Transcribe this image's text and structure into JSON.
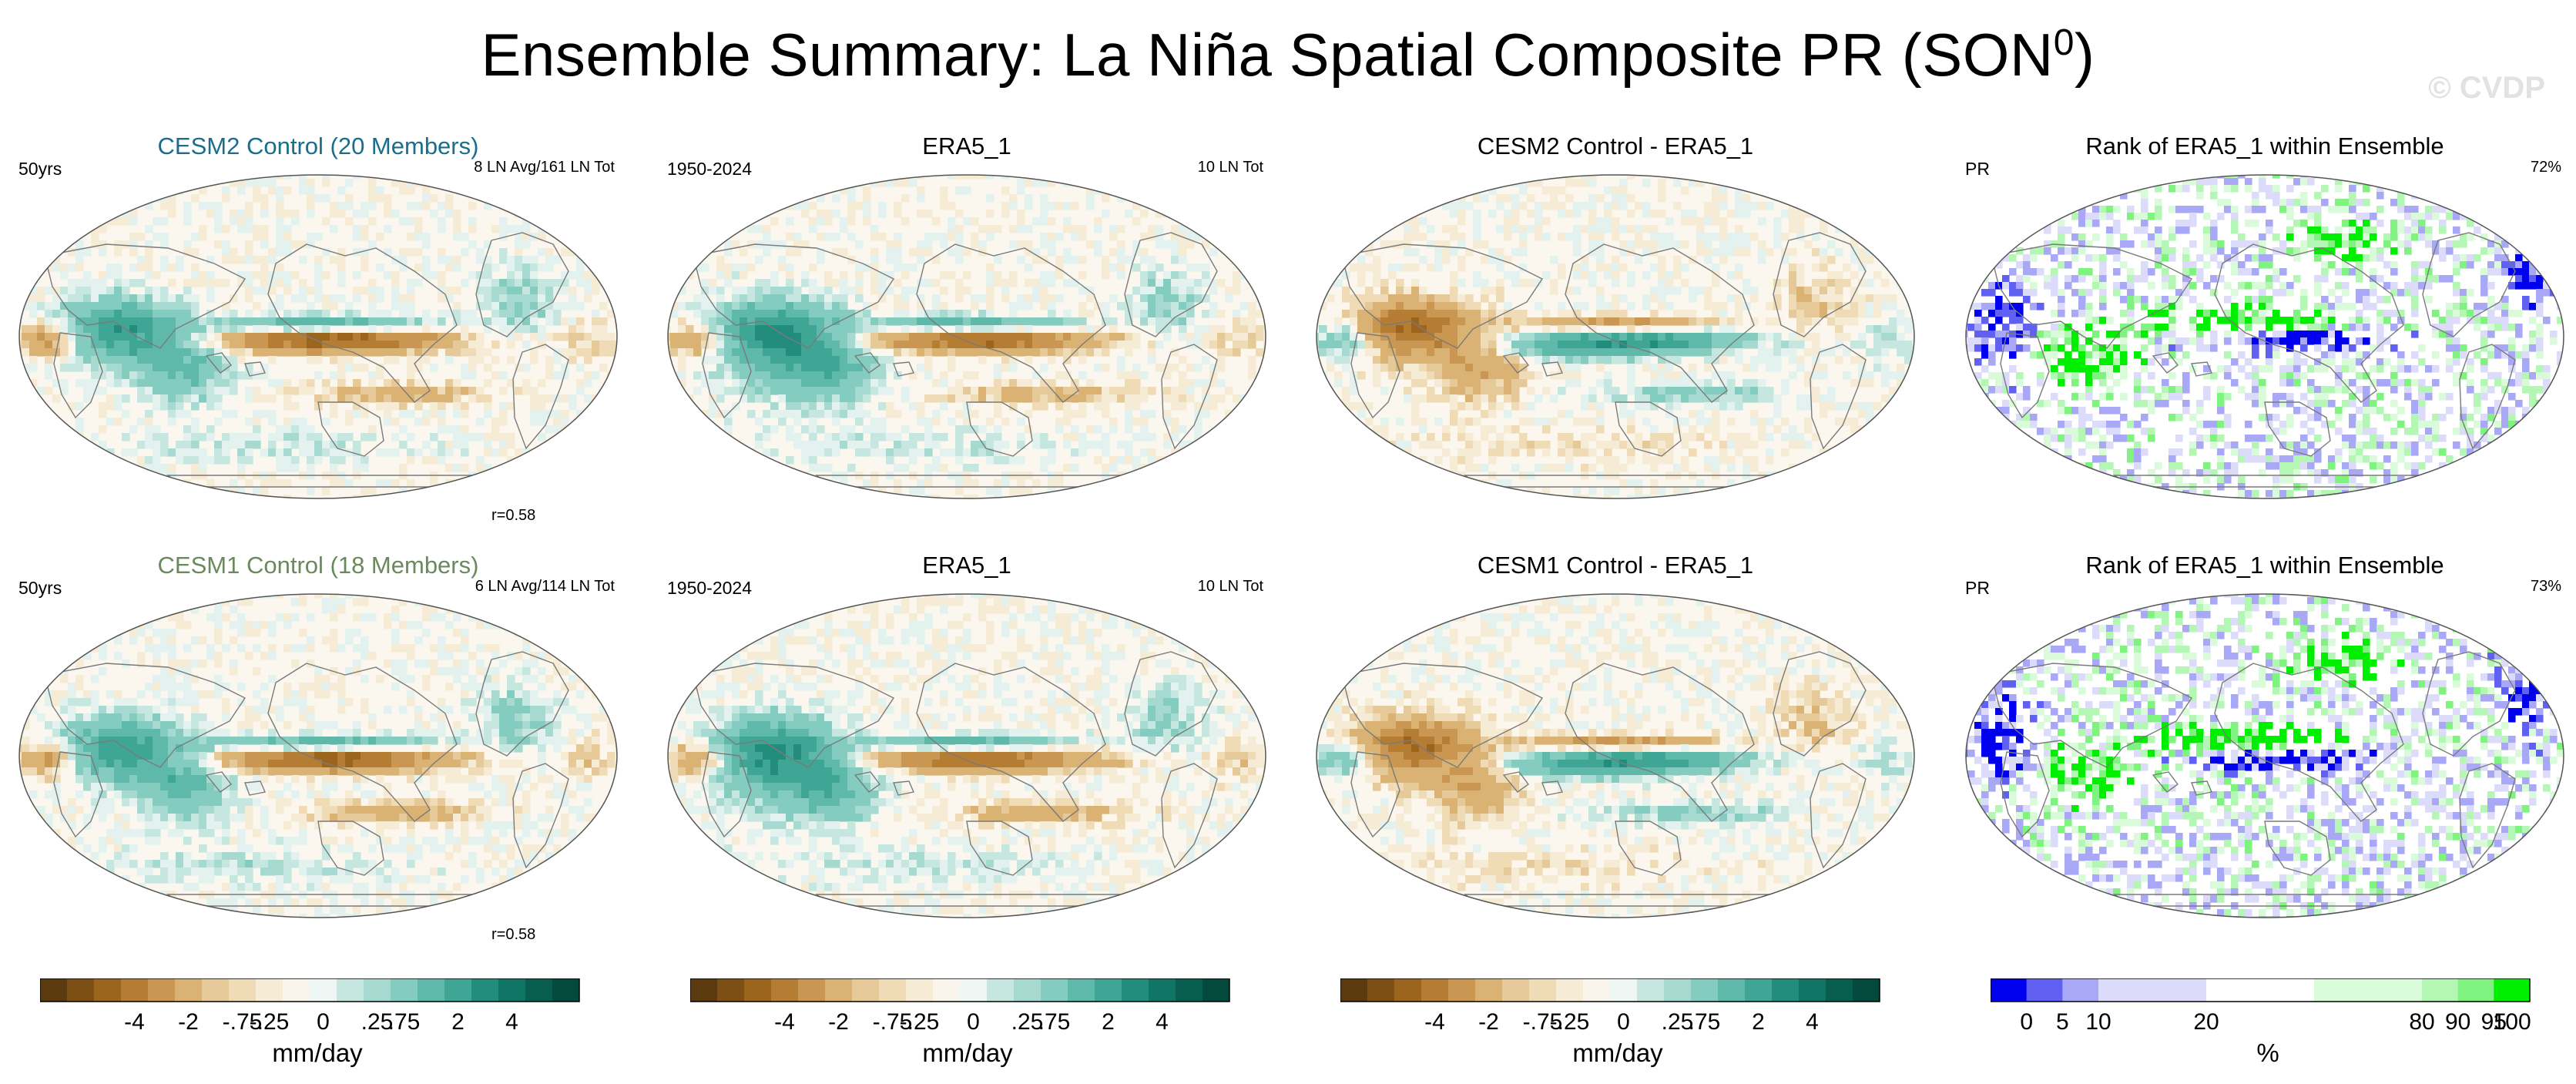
{
  "title": {
    "main": "Ensemble Summary: La Niña Spatial Composite PR (SON",
    "sup": "0",
    "end": ")"
  },
  "watermark": "© CVDP",
  "colors": {
    "cesm2": "#1b6e8a",
    "cesm1": "#6a8a5e",
    "ocean": "#f3ecdc",
    "coast": "#7a7a7a",
    "brown": [
      "#5c3a0f",
      "#7c4f14",
      "#9b651d",
      "#b47d33",
      "#c99751",
      "#d9b274",
      "#e6c998",
      "#efdcb6",
      "#f6ecd6"
    ],
    "teal": [
      "#e3f2ee",
      "#c6e7df",
      "#a6dad0",
      "#84ccbf",
      "#5fb9aa",
      "#3fa595",
      "#238d7d",
      "#107564",
      "#075e4f",
      "#034a3d"
    ],
    "rank": [
      "#0000ee",
      "#6060f2",
      "#a8a8f6",
      "#dcdcfa",
      "#ffffff",
      "#d9fbd9",
      "#b4f7b4",
      "#7ff27f",
      "#00ee00"
    ]
  },
  "panels": [
    {
      "row": 0,
      "col": 0,
      "title": "CESM2 Control (20 Members)",
      "title_color": "cesm2",
      "left_label": "50yrs",
      "right_label": "8 LN Avg/161 LN Tot",
      "bottom_label": "r=0.58",
      "kind": "composite",
      "seed": 11
    },
    {
      "row": 0,
      "col": 1,
      "title": "ERA5_1",
      "title_color": "",
      "left_label": "1950-2024",
      "right_label": "10 LN Tot",
      "bottom_label": "",
      "kind": "obs",
      "seed": 23
    },
    {
      "row": 0,
      "col": 2,
      "title": "CESM2 Control - ERA5_1",
      "title_color": "",
      "left_label": "",
      "right_label": "",
      "bottom_label": "",
      "kind": "diff",
      "seed": 37
    },
    {
      "row": 0,
      "col": 3,
      "title": "Rank of ERA5_1 within Ensemble",
      "title_color": "",
      "left_label": "PR",
      "right_label": "72%",
      "bottom_label": "",
      "kind": "rank",
      "seed": 41
    },
    {
      "row": 1,
      "col": 0,
      "title": "CESM1 Control (18 Members)",
      "title_color": "cesm1",
      "left_label": "50yrs",
      "right_label": "6 LN Avg/114 LN Tot",
      "bottom_label": "r=0.58",
      "kind": "composite",
      "seed": 53
    },
    {
      "row": 1,
      "col": 1,
      "title": "ERA5_1",
      "title_color": "",
      "left_label": "1950-2024",
      "right_label": "10 LN Tot",
      "bottom_label": "",
      "kind": "obs",
      "seed": 67
    },
    {
      "row": 1,
      "col": 2,
      "title": "CESM1 Control - ERA5_1",
      "title_color": "",
      "left_label": "",
      "right_label": "",
      "bottom_label": "",
      "kind": "diff",
      "seed": 71
    },
    {
      "row": 1,
      "col": 3,
      "title": "Rank of ERA5_1 within Ensemble",
      "title_color": "",
      "left_label": "PR",
      "right_label": "73%",
      "bottom_label": "",
      "kind": "rank",
      "seed": 83
    }
  ],
  "colorbars": [
    {
      "unit": "mm/day",
      "ticks": [
        "-4",
        "-2",
        "-.75",
        "-.25",
        "0",
        ".25",
        ".75",
        "2",
        "4"
      ],
      "kind": "diverging"
    },
    {
      "unit": "mm/day",
      "ticks": [
        "-4",
        "-2",
        "-.75",
        "-.25",
        "0",
        ".25",
        ".75",
        "2",
        "4"
      ],
      "kind": "diverging"
    },
    {
      "unit": "mm/day",
      "ticks": [
        "-4",
        "-2",
        "-.75",
        "-.25",
        "0",
        ".25",
        ".75",
        "2",
        "4"
      ],
      "kind": "diverging"
    },
    {
      "unit": "%",
      "ticks": [
        "0",
        "5",
        "10",
        "20",
        "80",
        "90",
        "95",
        "100"
      ],
      "kind": "rank"
    }
  ],
  "chart_data": {
    "type": "heatmap",
    "title": "Ensemble Summary: La Niña Spatial Composite PR (SON0)",
    "projection": "Robinson-like global map, Pacific-centered",
    "diverging_levels_mm_per_day": [
      -6,
      -5,
      -4,
      -3,
      -2,
      -1,
      -0.75,
      -0.5,
      -0.25,
      0,
      0.25,
      0.5,
      0.75,
      1,
      2,
      3,
      4,
      5,
      6
    ],
    "rank_levels_percent": [
      0,
      2.5,
      5,
      7.5,
      10,
      20,
      80,
      90,
      92.5,
      95,
      97.5,
      100
    ],
    "pattern_correlations": {
      "CESM2 Control": 0.58,
      "CESM1 Control": 0.58
    },
    "rank_summary_percent": {
      "CESM2 Control": 72,
      "CESM1 Control": 73
    }
  }
}
